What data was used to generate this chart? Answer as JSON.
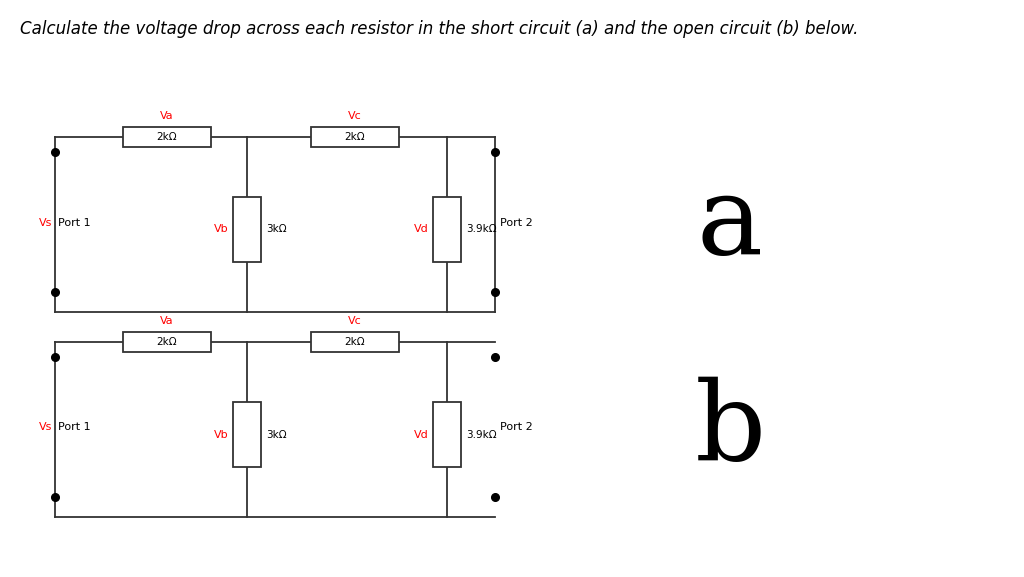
{
  "title": "Calculate the voltage drop across each resistor in the short circuit (a) and the open circuit (b) below.",
  "title_fontsize": 12,
  "title_style": "italic",
  "bg_color": "#ffffff",
  "line_color": "#333333",
  "red_color": "#ff0000",
  "black_color": "#000000",
  "label_a": "a",
  "label_b": "b",
  "circuit_a": {
    "Va_label": "Va",
    "Vb_label": "Vb",
    "Vc_label": "Vc",
    "Vd_label": "Vd",
    "Ra_label": "2kΩ",
    "Rb_label": "3kΩ",
    "Rc_label": "2kΩ",
    "Rd_label": "3.9kΩ",
    "port1_label": "Port 1",
    "port2_label": "Port 2",
    "Vs_label": "Vs"
  },
  "circuit_b": {
    "Va_label": "Va",
    "Vb_label": "Vb",
    "Vc_label": "Vc",
    "Vd_label": "Vd",
    "Ra_label": "2kΩ",
    "Rb_label": "3kΩ",
    "Rc_label": "2kΩ",
    "Rd_label": "3.9kΩ",
    "port1_label": "Port 1",
    "port2_label": "Port 2",
    "Vs_label": "Vs"
  }
}
